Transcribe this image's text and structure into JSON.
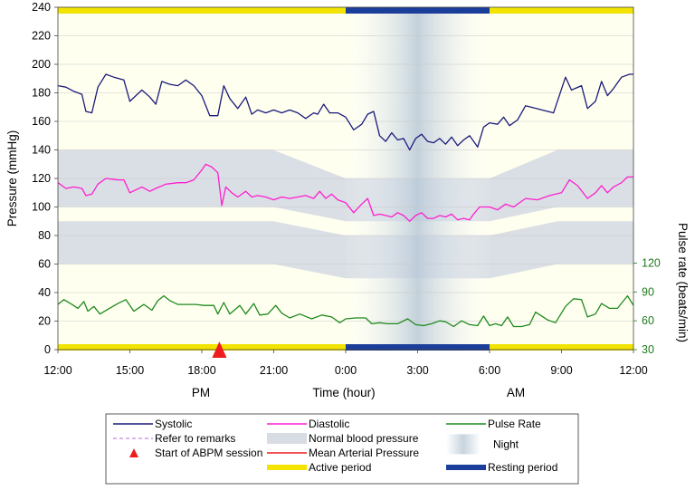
{
  "chart_data": {
    "type": "line",
    "y_left_label": "Pressure (mmHg)",
    "y_right_label": "Pulse rate (beats/min)",
    "x_label": "Time (hour)",
    "x_ticks": [
      "12:00",
      "15:00",
      "18:00",
      "21:00",
      "0:00",
      "3:00",
      "6:00",
      "9:00",
      "12:00"
    ],
    "period_labels": {
      "pm": "PM",
      "am": "AM"
    },
    "ylim": [
      0,
      240
    ],
    "y_ticks": [
      0,
      20,
      40,
      60,
      80,
      100,
      120,
      140,
      160,
      180,
      200,
      220,
      240
    ],
    "y2lim": [
      30,
      150
    ],
    "y2_ticks": [
      30,
      60,
      90,
      120
    ],
    "grid": true,
    "legend_position": "bottom",
    "night_period": [
      "0:00",
      "6:00"
    ],
    "active_period": [
      [
        "12:00",
        "0:00"
      ],
      [
        "6:00",
        "12:00"
      ]
    ],
    "resting_period": [
      "0:00",
      "6:00"
    ],
    "abpm_session_start": "18:44",
    "normal_bp_bands": {
      "day": {
        "systolic": [
          100,
          140
        ],
        "diastolic": [
          60,
          90
        ]
      },
      "night": {
        "systolic": [
          90,
          120
        ],
        "diastolic": [
          50,
          80
        ]
      }
    },
    "series": [
      {
        "name": "Systolic",
        "color": "#1b1b7a",
        "points": [
          [
            "12:00",
            185
          ],
          [
            "12:20",
            184
          ],
          [
            "12:40",
            181
          ],
          [
            "13:00",
            179
          ],
          [
            "13:10",
            167
          ],
          [
            "13:25",
            166
          ],
          [
            "13:40",
            184
          ],
          [
            "14:00",
            193
          ],
          [
            "14:20",
            191
          ],
          [
            "14:45",
            189
          ],
          [
            "15:00",
            174
          ],
          [
            "15:30",
            182
          ],
          [
            "15:50",
            177
          ],
          [
            "16:05",
            172
          ],
          [
            "16:20",
            188
          ],
          [
            "16:40",
            186
          ],
          [
            "17:00",
            185
          ],
          [
            "17:20",
            189
          ],
          [
            "17:40",
            185
          ],
          [
            "18:00",
            178
          ],
          [
            "18:20",
            164
          ],
          [
            "18:40",
            164
          ],
          [
            "18:55",
            185
          ],
          [
            "19:10",
            176
          ],
          [
            "19:30",
            169
          ],
          [
            "19:50",
            177
          ],
          [
            "20:05",
            165
          ],
          [
            "20:20",
            168
          ],
          [
            "20:40",
            166
          ],
          [
            "21:00",
            168
          ],
          [
            "21:20",
            166
          ],
          [
            "21:40",
            168
          ],
          [
            "22:00",
            166
          ],
          [
            "22:20",
            162
          ],
          [
            "22:40",
            166
          ],
          [
            "22:50",
            165
          ],
          [
            "23:05",
            172
          ],
          [
            "23:20",
            166
          ],
          [
            "23:40",
            166
          ],
          [
            "0:00",
            163
          ],
          [
            "0:20",
            154
          ],
          [
            "0:40",
            158
          ],
          [
            "0:55",
            165
          ],
          [
            "1:10",
            167
          ],
          [
            "1:25",
            150
          ],
          [
            "1:40",
            146
          ],
          [
            "1:55",
            152
          ],
          [
            "2:10",
            147
          ],
          [
            "2:25",
            148
          ],
          [
            "2:40",
            140
          ],
          [
            "2:55",
            148
          ],
          [
            "3:10",
            151
          ],
          [
            "3:25",
            146
          ],
          [
            "3:40",
            145
          ],
          [
            "3:55",
            148
          ],
          [
            "4:10",
            144
          ],
          [
            "4:25",
            149
          ],
          [
            "4:40",
            143
          ],
          [
            "4:55",
            147
          ],
          [
            "5:10",
            150
          ],
          [
            "5:30",
            142
          ],
          [
            "5:45",
            156
          ],
          [
            "6:00",
            159
          ],
          [
            "6:20",
            158
          ],
          [
            "6:35",
            163
          ],
          [
            "6:50",
            157
          ],
          [
            "7:10",
            161
          ],
          [
            "7:30",
            171
          ],
          [
            "8:40",
            166
          ],
          [
            "9:10",
            191
          ],
          [
            "9:25",
            182
          ],
          [
            "9:50",
            185
          ],
          [
            "10:05",
            169
          ],
          [
            "10:25",
            174
          ],
          [
            "10:40",
            188
          ],
          [
            "10:55",
            178
          ],
          [
            "11:10",
            183
          ],
          [
            "11:30",
            191
          ],
          [
            "11:50",
            193
          ],
          [
            "12:00",
            193
          ]
        ]
      },
      {
        "name": "Diastolic",
        "color": "#ff1ecf",
        "points": [
          [
            "12:00",
            117
          ],
          [
            "12:20",
            113
          ],
          [
            "12:40",
            114
          ],
          [
            "13:00",
            113
          ],
          [
            "13:10",
            108
          ],
          [
            "13:25",
            109
          ],
          [
            "13:40",
            116
          ],
          [
            "14:00",
            120
          ],
          [
            "14:30",
            119
          ],
          [
            "14:45",
            119
          ],
          [
            "15:00",
            110
          ],
          [
            "15:30",
            114
          ],
          [
            "15:50",
            111
          ],
          [
            "16:05",
            113
          ],
          [
            "16:30",
            116
          ],
          [
            "17:00",
            117
          ],
          [
            "17:20",
            117
          ],
          [
            "17:40",
            119
          ],
          [
            "18:00",
            126
          ],
          [
            "18:10",
            130
          ],
          [
            "18:25",
            128
          ],
          [
            "18:40",
            124
          ],
          [
            "18:50",
            101
          ],
          [
            "19:00",
            114
          ],
          [
            "19:15",
            110
          ],
          [
            "19:30",
            107
          ],
          [
            "19:50",
            111
          ],
          [
            "20:05",
            107
          ],
          [
            "20:20",
            108
          ],
          [
            "20:40",
            107
          ],
          [
            "21:00",
            105
          ],
          [
            "21:20",
            107
          ],
          [
            "21:40",
            106
          ],
          [
            "22:00",
            107
          ],
          [
            "22:20",
            108
          ],
          [
            "22:40",
            106
          ],
          [
            "22:55",
            111
          ],
          [
            "23:10",
            106
          ],
          [
            "23:25",
            109
          ],
          [
            "23:40",
            105
          ],
          [
            "0:00",
            103
          ],
          [
            "0:20",
            96
          ],
          [
            "0:40",
            102
          ],
          [
            "0:55",
            106
          ],
          [
            "1:10",
            94
          ],
          [
            "1:25",
            95
          ],
          [
            "1:40",
            94
          ],
          [
            "1:55",
            93
          ],
          [
            "2:10",
            96
          ],
          [
            "2:25",
            94
          ],
          [
            "2:40",
            90
          ],
          [
            "2:55",
            94
          ],
          [
            "3:10",
            96
          ],
          [
            "3:25",
            92
          ],
          [
            "3:40",
            92
          ],
          [
            "3:55",
            94
          ],
          [
            "4:10",
            93
          ],
          [
            "4:25",
            95
          ],
          [
            "4:40",
            91
          ],
          [
            "4:55",
            92
          ],
          [
            "5:10",
            91
          ],
          [
            "5:20",
            95
          ],
          [
            "5:35",
            100
          ],
          [
            "6:00",
            100
          ],
          [
            "6:20",
            98
          ],
          [
            "6:40",
            102
          ],
          [
            "7:00",
            100
          ],
          [
            "7:30",
            106
          ],
          [
            "8:00",
            105
          ],
          [
            "8:30",
            108
          ],
          [
            "9:00",
            110
          ],
          [
            "9:20",
            119
          ],
          [
            "9:40",
            115
          ],
          [
            "10:05",
            106
          ],
          [
            "10:25",
            110
          ],
          [
            "10:40",
            115
          ],
          [
            "10:55",
            110
          ],
          [
            "11:10",
            114
          ],
          [
            "11:30",
            117
          ],
          [
            "11:45",
            121
          ],
          [
            "12:00",
            121
          ]
        ]
      },
      {
        "name": "Pulse Rate",
        "color": "#1e8a1e",
        "points": [
          [
            "12:00",
            77
          ],
          [
            "12:15",
            82
          ],
          [
            "12:35",
            77
          ],
          [
            "12:50",
            73
          ],
          [
            "13:05",
            80
          ],
          [
            "13:15",
            70
          ],
          [
            "13:30",
            75
          ],
          [
            "13:45",
            67
          ],
          [
            "14:05",
            72
          ],
          [
            "14:30",
            78
          ],
          [
            "14:50",
            82
          ],
          [
            "15:10",
            70
          ],
          [
            "15:35",
            77
          ],
          [
            "15:55",
            71
          ],
          [
            "16:10",
            81
          ],
          [
            "16:25",
            86
          ],
          [
            "16:40",
            81
          ],
          [
            "17:00",
            77
          ],
          [
            "17:20",
            77
          ],
          [
            "17:45",
            77
          ],
          [
            "18:05",
            76
          ],
          [
            "18:30",
            76
          ],
          [
            "18:40",
            67
          ],
          [
            "18:55",
            79
          ],
          [
            "19:10",
            67
          ],
          [
            "19:35",
            76
          ],
          [
            "19:50",
            67
          ],
          [
            "20:10",
            78
          ],
          [
            "20:25",
            66
          ],
          [
            "20:45",
            67
          ],
          [
            "21:05",
            76
          ],
          [
            "21:20",
            68
          ],
          [
            "21:40",
            63
          ],
          [
            "22:05",
            67
          ],
          [
            "22:35",
            62
          ],
          [
            "23:00",
            66
          ],
          [
            "23:25",
            64
          ],
          [
            "23:45",
            58
          ],
          [
            "0:00",
            62
          ],
          [
            "0:25",
            63
          ],
          [
            "0:50",
            63
          ],
          [
            "1:05",
            57
          ],
          [
            "1:25",
            58
          ],
          [
            "1:45",
            57
          ],
          [
            "2:10",
            57
          ],
          [
            "2:35",
            62
          ],
          [
            "2:55",
            56
          ],
          [
            "3:15",
            55
          ],
          [
            "3:35",
            57
          ],
          [
            "3:55",
            60
          ],
          [
            "4:10",
            59
          ],
          [
            "4:30",
            54
          ],
          [
            "4:50",
            60
          ],
          [
            "5:10",
            56
          ],
          [
            "5:30",
            55
          ],
          [
            "5:45",
            65
          ],
          [
            "6:00",
            55
          ],
          [
            "6:15",
            57
          ],
          [
            "6:30",
            55
          ],
          [
            "6:45",
            64
          ],
          [
            "7:00",
            54
          ],
          [
            "7:20",
            54
          ],
          [
            "7:40",
            56
          ],
          [
            "7:55",
            69
          ],
          [
            "8:25",
            61
          ],
          [
            "8:45",
            58
          ],
          [
            "9:10",
            75
          ],
          [
            "9:30",
            83
          ],
          [
            "9:50",
            82
          ],
          [
            "10:05",
            64
          ],
          [
            "10:25",
            67
          ],
          [
            "10:40",
            78
          ],
          [
            "11:00",
            73
          ],
          [
            "11:20",
            73
          ],
          [
            "11:45",
            86
          ],
          [
            "12:00",
            76
          ]
        ]
      }
    ]
  },
  "legend": [
    {
      "key": "systolic",
      "label": "Systolic",
      "symbol": "line",
      "color": "#1b1b7a"
    },
    {
      "key": "refer",
      "label": "Refer to remarks",
      "symbol": "dashed",
      "color": "#cf9be8"
    },
    {
      "key": "start",
      "label": "Start of ABPM session",
      "symbol": "triangle",
      "color": "#ee1c1c"
    },
    {
      "key": "diastolic",
      "label": "Diastolic",
      "symbol": "line",
      "color": "#ff1ecf"
    },
    {
      "key": "normal",
      "label": "Normal blood pressure",
      "symbol": "band",
      "color": "#d8dde4"
    },
    {
      "key": "map",
      "label": "Mean Arterial Pressure",
      "symbol": "line",
      "color": "#ee1c1c"
    },
    {
      "key": "active",
      "label": "Active period",
      "symbol": "thick",
      "color": "#f2e400"
    },
    {
      "key": "pulse",
      "label": "Pulse Rate",
      "symbol": "line",
      "color": "#1e8a1e"
    },
    {
      "key": "night",
      "label": "Night",
      "symbol": "night",
      "color": "#c8d4de"
    },
    {
      "key": "resting",
      "label": "Resting period",
      "symbol": "thick",
      "color": "#1a3e9a"
    }
  ],
  "colors": {
    "plot_bg": "#fffff0",
    "grid": "#c8c8c8",
    "band": "#d8dde4",
    "night": "#b9c9d8",
    "active": "#f2e400",
    "resting": "#1a3e9a",
    "marker": "#ee1c1c",
    "right_axis": "#1e7a1e"
  }
}
